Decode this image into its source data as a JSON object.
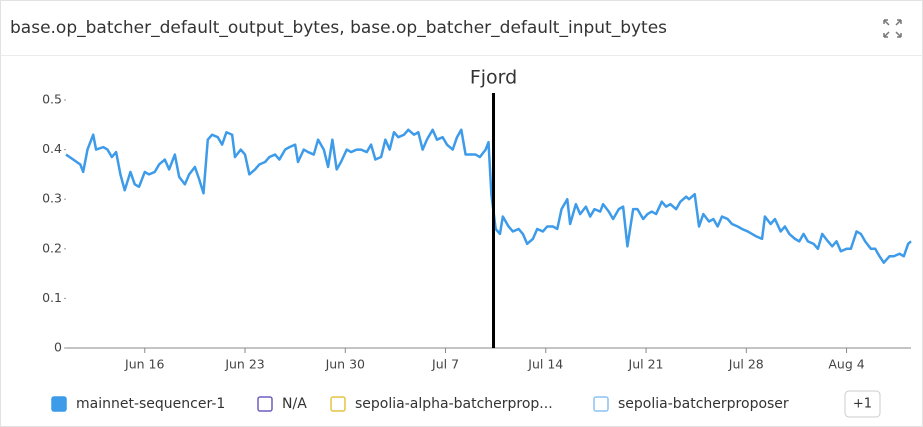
{
  "chart_data": {
    "type": "line",
    "title": "base.op_batcher_default_output_bytes, base.op_batcher_default_input_bytes",
    "x": [
      10.5,
      11.0,
      11.5,
      11.7,
      12.0,
      12.4,
      12.6,
      13.1,
      13.4,
      13.7,
      14.0,
      14.3,
      14.6,
      15.0,
      15.3,
      15.6,
      16.0,
      16.3,
      16.7,
      17.0,
      17.4,
      17.7,
      18.1,
      18.4,
      18.8,
      19.1,
      19.5,
      19.8,
      20.1,
      20.4,
      20.7,
      21.1,
      21.4,
      21.7,
      22.1,
      22.3,
      22.7,
      23.0,
      23.3,
      23.7,
      24.0,
      24.4,
      24.7,
      25.1,
      25.4,
      25.8,
      26.1,
      26.5,
      26.7,
      27.1,
      27.4,
      27.8,
      28.1,
      28.5,
      28.8,
      29.1,
      29.4,
      29.7,
      30.1,
      30.4,
      30.8,
      31.1,
      31.5,
      31.8,
      32.1,
      32.5,
      32.8,
      33.1,
      33.4,
      33.7,
      34.1,
      34.4,
      34.8,
      35.1,
      35.4,
      35.7,
      36.1,
      36.4,
      36.8,
      37.1,
      37.5,
      37.8,
      38.1,
      38.4,
      38.7,
      39.1,
      39.4,
      39.8,
      40.0,
      40.2,
      40.5,
      40.8,
      41.0,
      41.4,
      41.7,
      42.1,
      42.4,
      42.7,
      43.1,
      43.4,
      43.8,
      44.1,
      44.5,
      44.8,
      45.1,
      45.5,
      45.7,
      46.1,
      46.4,
      46.8,
      47.1,
      47.4,
      47.8,
      48.0,
      48.4,
      48.7,
      49.1,
      49.4,
      49.7,
      50.1,
      50.4,
      50.8,
      51.1,
      51.4,
      51.7,
      52.1,
      52.4,
      52.7,
      53.1,
      53.4,
      53.8,
      54.0,
      54.4,
      54.7,
      55.0,
      55.4,
      55.7,
      56.0,
      56.3,
      56.7,
      57.0,
      57.4,
      57.7,
      58.1,
      58.4,
      58.7,
      59.1,
      59.3,
      59.7,
      60.0,
      60.4,
      60.7,
      61.0,
      61.4,
      61.7,
      62.0,
      62.3,
      62.7,
      63.0,
      63.3,
      63.7,
      64.0,
      64.3,
      64.6,
      65.0,
      65.3,
      65.7,
      66.0,
      66.3,
      66.7,
      67.0,
      67.3,
      67.6,
      68.0,
      68.3,
      68.7,
      69.0,
      69.3,
      69.5
    ],
    "series": [
      {
        "name": "mainnet-sequencer-1",
        "color": "#3d9be9",
        "values": [
          0.39,
          0.38,
          0.37,
          0.355,
          0.4,
          0.43,
          0.4,
          0.405,
          0.4,
          0.385,
          0.395,
          0.35,
          0.318,
          0.355,
          0.33,
          0.325,
          0.355,
          0.35,
          0.355,
          0.37,
          0.38,
          0.36,
          0.39,
          0.345,
          0.33,
          0.35,
          0.365,
          0.34,
          0.312,
          0.42,
          0.43,
          0.425,
          0.41,
          0.435,
          0.43,
          0.385,
          0.4,
          0.39,
          0.35,
          0.36,
          0.37,
          0.375,
          0.385,
          0.39,
          0.38,
          0.4,
          0.405,
          0.41,
          0.375,
          0.4,
          0.395,
          0.39,
          0.42,
          0.4,
          0.365,
          0.42,
          0.36,
          0.375,
          0.4,
          0.395,
          0.4,
          0.4,
          0.395,
          0.41,
          0.38,
          0.385,
          0.42,
          0.4,
          0.435,
          0.425,
          0.43,
          0.44,
          0.43,
          0.435,
          0.4,
          0.42,
          0.44,
          0.42,
          0.425,
          0.41,
          0.4,
          0.425,
          0.44,
          0.39,
          0.39,
          0.39,
          0.385,
          0.4,
          0.415,
          0.31,
          0.24,
          0.23,
          0.265,
          0.245,
          0.235,
          0.24,
          0.23,
          0.21,
          0.22,
          0.24,
          0.235,
          0.245,
          0.245,
          0.24,
          0.28,
          0.3,
          0.25,
          0.29,
          0.27,
          0.285,
          0.265,
          0.28,
          0.275,
          0.29,
          0.275,
          0.26,
          0.28,
          0.285,
          0.205,
          0.28,
          0.28,
          0.26,
          0.27,
          0.275,
          0.27,
          0.295,
          0.285,
          0.29,
          0.28,
          0.295,
          0.305,
          0.3,
          0.31,
          0.245,
          0.27,
          0.255,
          0.26,
          0.245,
          0.265,
          0.26,
          0.25,
          0.245,
          0.24,
          0.235,
          0.23,
          0.225,
          0.22,
          0.265,
          0.25,
          0.26,
          0.235,
          0.245,
          0.23,
          0.22,
          0.215,
          0.23,
          0.215,
          0.21,
          0.2,
          0.23,
          0.215,
          0.205,
          0.215,
          0.195,
          0.2,
          0.2,
          0.235,
          0.23,
          0.215,
          0.2,
          0.2,
          0.185,
          0.172,
          0.185,
          0.185,
          0.19,
          0.185,
          0.21,
          0.215
        ]
      }
    ],
    "xlim": [
      10.5,
      69.5
    ],
    "xticks": [
      {
        "value": 16,
        "label": "Jun 16"
      },
      {
        "value": 23,
        "label": "Jun 23"
      },
      {
        "value": 30,
        "label": "Jun 30"
      },
      {
        "value": 37,
        "label": "Jul 7"
      },
      {
        "value": 44,
        "label": "Jul 14"
      },
      {
        "value": 51,
        "label": "Jul 21"
      },
      {
        "value": 58,
        "label": "Jul 28"
      },
      {
        "value": 65,
        "label": "Aug 4"
      }
    ],
    "ylim": [
      0,
      0.5
    ],
    "yticks": [
      0,
      0.1,
      0.2,
      0.3,
      0.4,
      0.5
    ],
    "grid": false,
    "annotation": {
      "label": "Fjord",
      "x": 40.35,
      "color": "#000000"
    },
    "legend": {
      "hidden": [
        {
          "name": "N/A",
          "color": "#6f5fc2"
        },
        {
          "name": "sepolia-alpha-batcherprop...",
          "color": "#e6c443"
        },
        {
          "name": "sepolia-batcherproposer",
          "color": "#8cc4f2"
        }
      ],
      "more": "+1"
    }
  }
}
